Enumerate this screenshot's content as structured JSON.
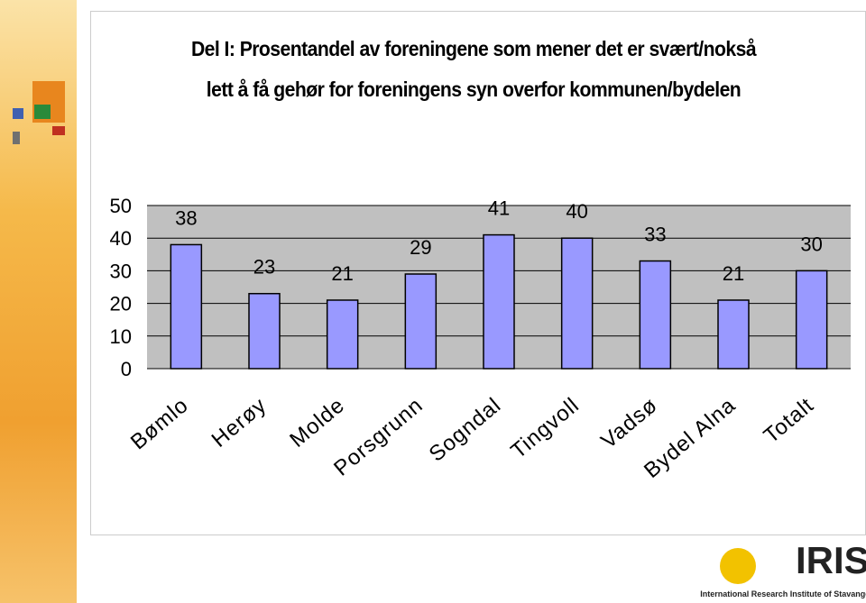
{
  "chart_data": {
    "type": "bar",
    "title": "Del I: Prosentandel av foreningene som mener det er svært/nokså lett å få gehør for foreningens syn overfor kommunen/bydelen",
    "categories": [
      "Bømlo",
      "Herøy",
      "Molde",
      "Porsgrunn",
      "Sogndal",
      "Tingvoll",
      "Vadsø",
      "Bydel Alna",
      "Totalt"
    ],
    "values": [
      38,
      23,
      21,
      29,
      41,
      40,
      33,
      21,
      30
    ],
    "color": "#9999ff",
    "ylim": [
      0,
      50
    ],
    "yticks": [
      0,
      10,
      20,
      30,
      40,
      50
    ],
    "grid": true
  },
  "logo": {
    "name": "IRIS",
    "tagline": "International Research Institute of Stavanger"
  }
}
